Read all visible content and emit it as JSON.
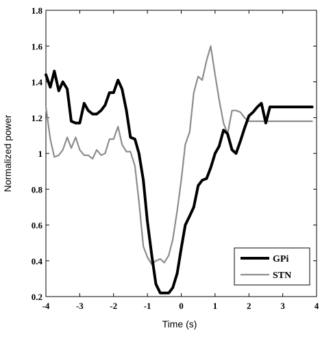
{
  "chart_data": {
    "type": "line",
    "xlabel": "Time (s)",
    "ylabel": "Normalized power",
    "xlim": [
      -4,
      4
    ],
    "ylim": [
      0.2,
      1.8
    ],
    "xticks": [
      "-4",
      "-3",
      "-2",
      "-1",
      "0",
      "1",
      "2",
      "3",
      "4"
    ],
    "yticks": [
      "0.2",
      "0.4",
      "0.6",
      "0.8",
      "1",
      "1.2",
      "1.4",
      "1.6",
      "1.8"
    ],
    "grid": false,
    "legend_position": "bottom-right",
    "series": [
      {
        "name": "GPi",
        "color": "#000000",
        "x": [
          -4.0,
          -3.87,
          -3.75,
          -3.62,
          -3.5,
          -3.37,
          -3.25,
          -3.12,
          -3.0,
          -2.87,
          -2.75,
          -2.62,
          -2.5,
          -2.37,
          -2.25,
          -2.12,
          -2.0,
          -1.87,
          -1.75,
          -1.62,
          -1.5,
          -1.37,
          -1.25,
          -1.12,
          -1.0,
          -0.87,
          -0.75,
          -0.62,
          -0.5,
          -0.37,
          -0.25,
          -0.12,
          0.0,
          0.12,
          0.25,
          0.37,
          0.5,
          0.62,
          0.75,
          0.87,
          1.0,
          1.12,
          1.25,
          1.37,
          1.5,
          1.62,
          1.75,
          1.87,
          2.0,
          2.12,
          2.25,
          2.37,
          2.5,
          2.62,
          2.75,
          2.87,
          3.0,
          3.12,
          3.25,
          3.37,
          3.5,
          3.62,
          3.75,
          3.87
        ],
        "y": [
          1.44,
          1.37,
          1.46,
          1.35,
          1.4,
          1.36,
          1.18,
          1.17,
          1.17,
          1.28,
          1.24,
          1.22,
          1.22,
          1.24,
          1.27,
          1.34,
          1.34,
          1.41,
          1.36,
          1.24,
          1.09,
          1.08,
          1.0,
          0.85,
          0.62,
          0.43,
          0.27,
          0.22,
          0.22,
          0.22,
          0.25,
          0.33,
          0.47,
          0.6,
          0.65,
          0.7,
          0.82,
          0.85,
          0.86,
          0.92,
          1.0,
          1.04,
          1.13,
          1.11,
          1.02,
          1.0,
          1.07,
          1.14,
          1.21,
          1.23,
          1.26,
          1.28,
          1.17,
          1.26,
          1.26,
          1.26,
          1.26,
          1.26,
          1.26,
          1.26,
          1.26,
          1.26,
          1.26,
          1.26
        ]
      },
      {
        "name": "STN",
        "color": "#8c8c8c",
        "x": [
          -4.0,
          -3.87,
          -3.75,
          -3.62,
          -3.5,
          -3.37,
          -3.25,
          -3.12,
          -3.0,
          -2.87,
          -2.75,
          -2.62,
          -2.5,
          -2.37,
          -2.25,
          -2.12,
          -2.0,
          -1.87,
          -1.75,
          -1.62,
          -1.5,
          -1.37,
          -1.25,
          -1.12,
          -1.0,
          -0.87,
          -0.75,
          -0.62,
          -0.5,
          -0.37,
          -0.25,
          -0.12,
          0.0,
          0.12,
          0.25,
          0.37,
          0.5,
          0.62,
          0.75,
          0.87,
          1.0,
          1.12,
          1.25,
          1.37,
          1.5,
          1.62,
          1.75,
          1.87,
          2.0,
          2.12,
          2.25,
          2.37,
          2.5,
          2.62,
          2.75,
          2.87,
          3.0,
          3.12,
          3.25,
          3.37,
          3.5,
          3.62,
          3.75,
          3.87
        ],
        "y": [
          1.26,
          1.08,
          0.98,
          0.99,
          1.02,
          1.09,
          1.03,
          1.09,
          1.02,
          0.99,
          0.99,
          0.97,
          1.02,
          0.99,
          1.0,
          1.08,
          1.08,
          1.15,
          1.05,
          1.01,
          1.01,
          0.93,
          0.73,
          0.48,
          0.42,
          0.38,
          0.4,
          0.41,
          0.39,
          0.43,
          0.52,
          0.68,
          0.85,
          1.05,
          1.12,
          1.34,
          1.43,
          1.41,
          1.52,
          1.6,
          1.44,
          1.3,
          1.17,
          1.11,
          1.24,
          1.24,
          1.23,
          1.2,
          1.18,
          1.18,
          1.18,
          1.18,
          1.18,
          1.18,
          1.18,
          1.18,
          1.18,
          1.18,
          1.18,
          1.18,
          1.18,
          1.18,
          1.18,
          1.18
        ]
      }
    ]
  }
}
